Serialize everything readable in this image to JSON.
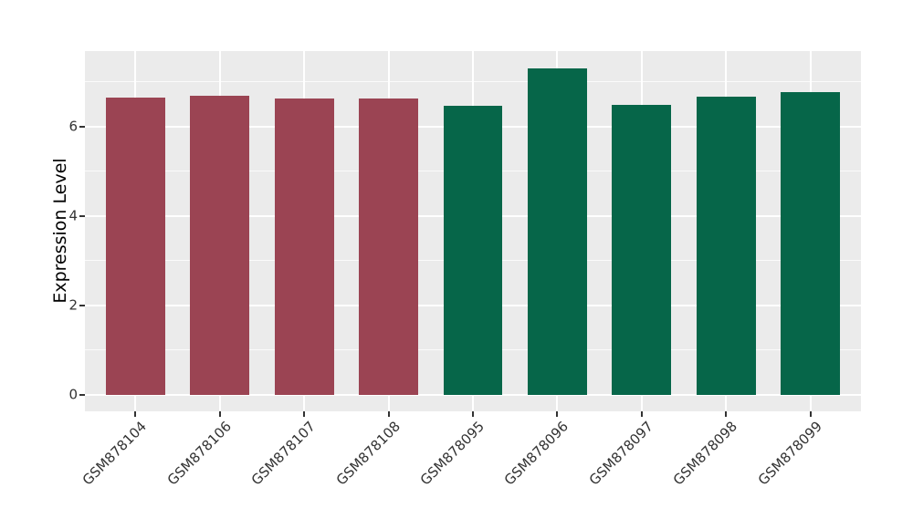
{
  "chart_data": {
    "type": "bar",
    "title": "",
    "xlabel": "",
    "ylabel": "Expression Level",
    "categories": [
      "GSM878104",
      "GSM878106",
      "GSM878107",
      "GSM878108",
      "GSM878095",
      "GSM878096",
      "GSM878097",
      "GSM878098",
      "GSM878099"
    ],
    "values": [
      6.65,
      6.7,
      6.63,
      6.63,
      6.47,
      7.31,
      6.49,
      6.67,
      6.78
    ],
    "bar_colors": [
      "#9B4453",
      "#9B4453",
      "#9B4453",
      "#9B4453",
      "#066649",
      "#066649",
      "#066649",
      "#066649",
      "#066649"
    ],
    "groups": [
      {
        "color": "#9B4453",
        "samples": [
          "GSM878104",
          "GSM878106",
          "GSM878107",
          "GSM878108"
        ]
      },
      {
        "color": "#066649",
        "samples": [
          "GSM878095",
          "GSM878096",
          "GSM878097",
          "GSM878098",
          "GSM878099"
        ]
      }
    ],
    "ylim": [
      -0.37,
      7.69
    ],
    "yticks": [
      0,
      2,
      4,
      6
    ],
    "yticks_minor": [
      1,
      3,
      5,
      7
    ],
    "grid": true,
    "legend_position": "none",
    "x_tick_rotation_deg": 45,
    "panel_background": "#EBEBEB",
    "gridline_color": "#FFFFFF",
    "tick_color": "#333333",
    "tick_label_color": "#333333",
    "axis_title_color": "#000000"
  }
}
